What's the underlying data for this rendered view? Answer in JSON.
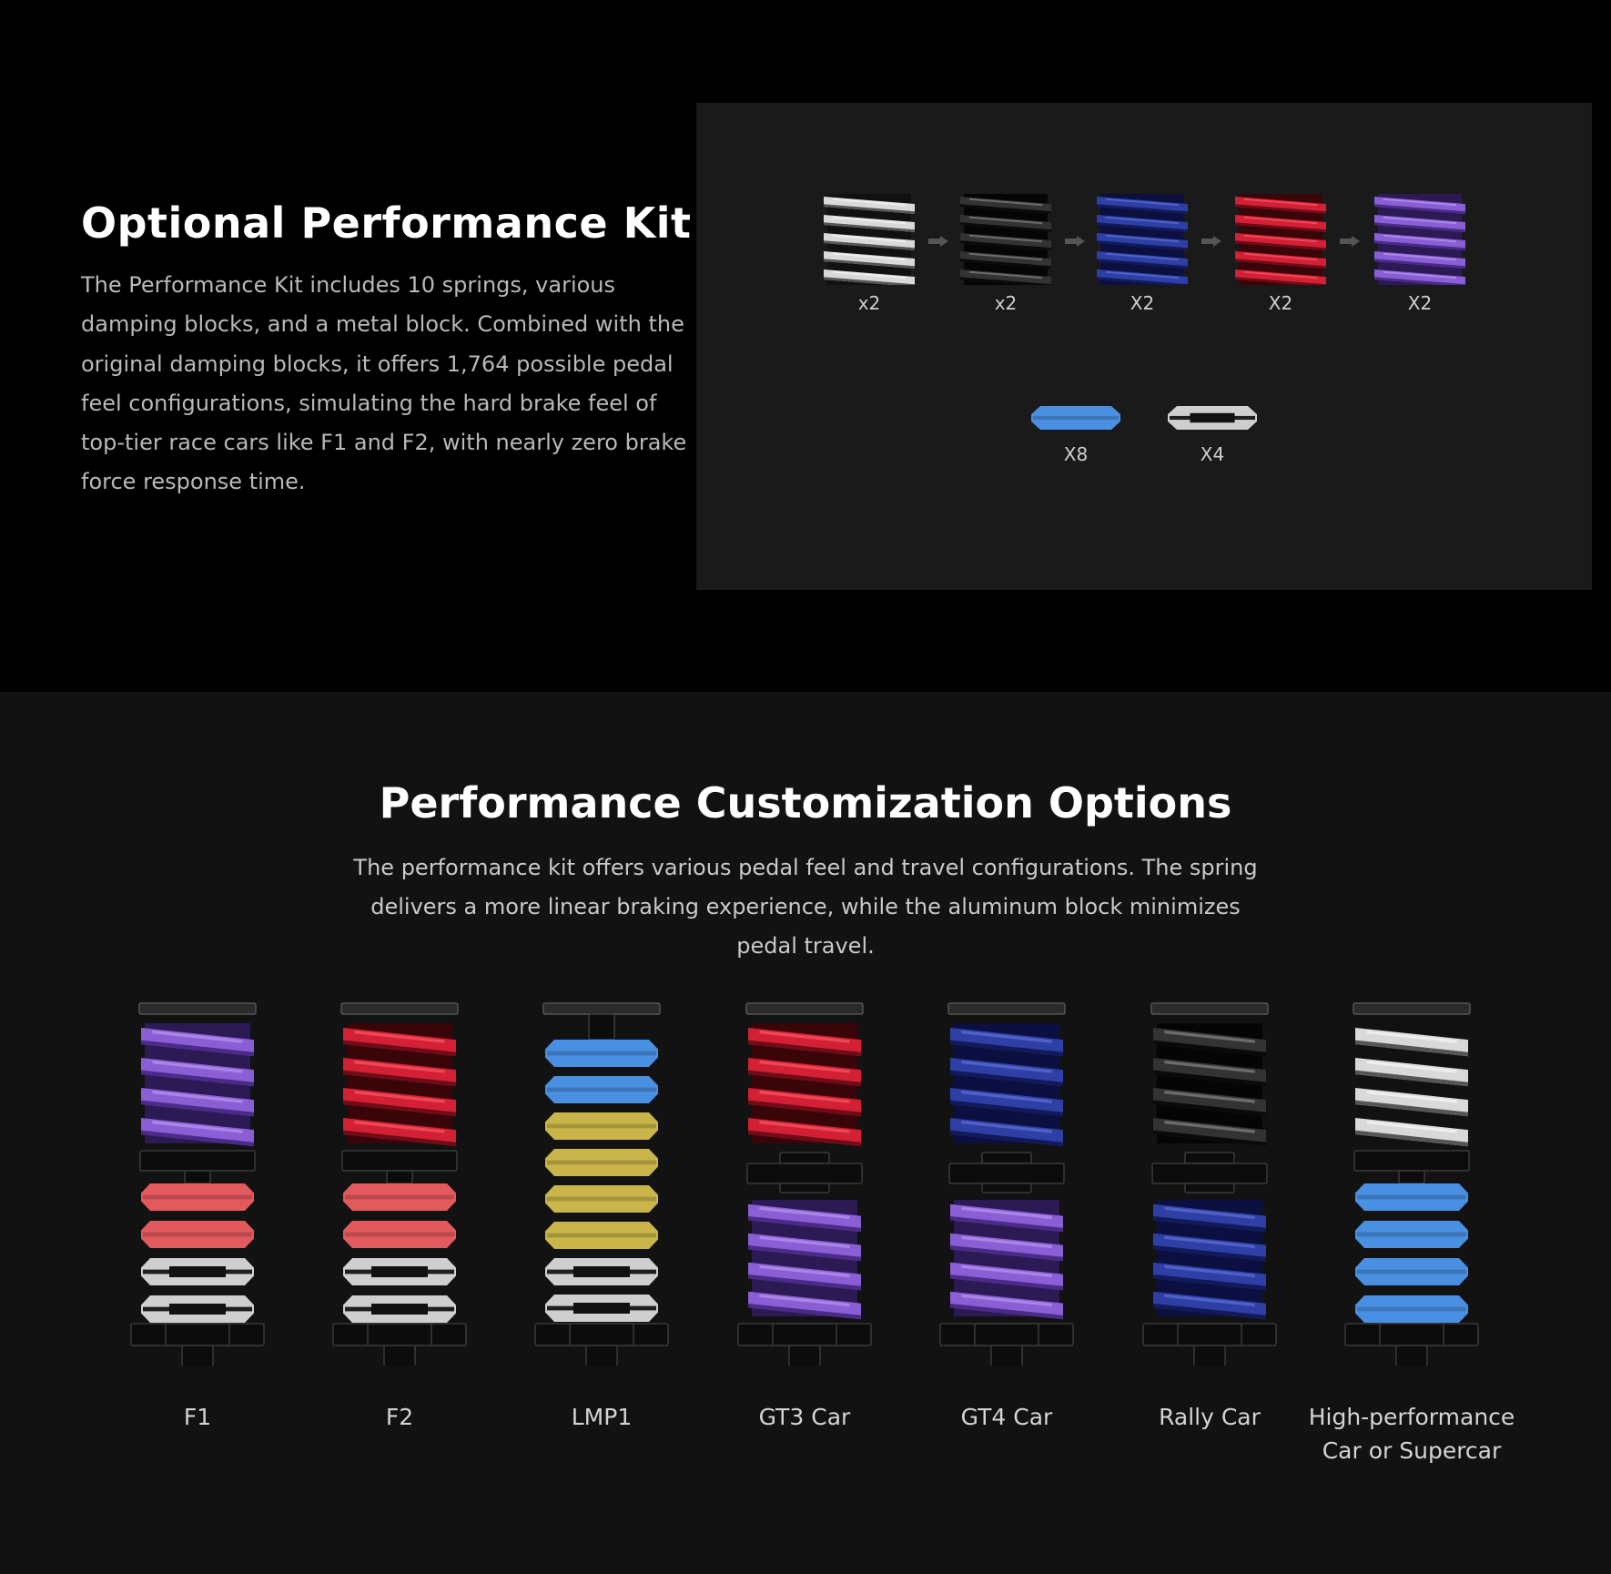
{
  "kit": {
    "title": "Optional Performance Kit",
    "description": "The Performance Kit includes 10 springs, various damping blocks, and a metal block. Combined with the original damping blocks, it offers 1,764 possible pedal feel configurations, simulating the hard brake feel of top-tier race cars like F1 and F2, with nearly zero brake force response time.",
    "springs": [
      {
        "color": "silver",
        "qty": "x2"
      },
      {
        "color": "black",
        "qty": "x2"
      },
      {
        "color": "blue",
        "qty": "X2"
      },
      {
        "color": "red",
        "qty": "X2"
      },
      {
        "color": "purple",
        "qty": "X2"
      }
    ],
    "blocks": [
      {
        "color": "blue",
        "qty": "X8"
      },
      {
        "color": "silver",
        "qty": "X4"
      }
    ]
  },
  "options": {
    "title": "Performance Customization Options",
    "description": "The performance kit offers various pedal feel and travel configurations. The spring delivers a more linear braking experience, while the aluminum block minimizes pedal travel.",
    "configs": [
      {
        "label": "F1",
        "type": "spring-blocks",
        "spring": "purple",
        "blocks": [
          "red",
          "red",
          "silver",
          "silver"
        ]
      },
      {
        "label": "F2",
        "type": "spring-blocks",
        "spring": "red",
        "blocks": [
          "red",
          "red",
          "silver",
          "silver"
        ]
      },
      {
        "label": "LMP1",
        "type": "blocks-only",
        "blocks": [
          "blue",
          "blue",
          "yellow",
          "yellow",
          "yellow",
          "yellow",
          "silver",
          "silver"
        ]
      },
      {
        "label": "GT3 Car",
        "type": "double-spring",
        "spring": "red",
        "spring2": "purple"
      },
      {
        "label": "GT4 Car",
        "type": "double-spring",
        "spring": "blue",
        "spring2": "purple"
      },
      {
        "label": "Rally Car",
        "type": "double-spring",
        "spring": "black",
        "spring2": "blue"
      },
      {
        "label": "High-performance Car or Supercar",
        "type": "spring-blocks",
        "spring": "silver",
        "blocks": [
          "blue",
          "blue",
          "blue",
          "blue"
        ]
      }
    ]
  },
  "colors": {
    "silver": "#cfcfcf",
    "black": "#2a2a2a",
    "blue": "#2e3fa6",
    "red": "#d42035",
    "purple": "#8a5fd6",
    "block_red": "#e25a5e",
    "block_blue": "#4a90e2",
    "block_yellow": "#c9b54a",
    "block_silver": "#cfcfcf"
  }
}
